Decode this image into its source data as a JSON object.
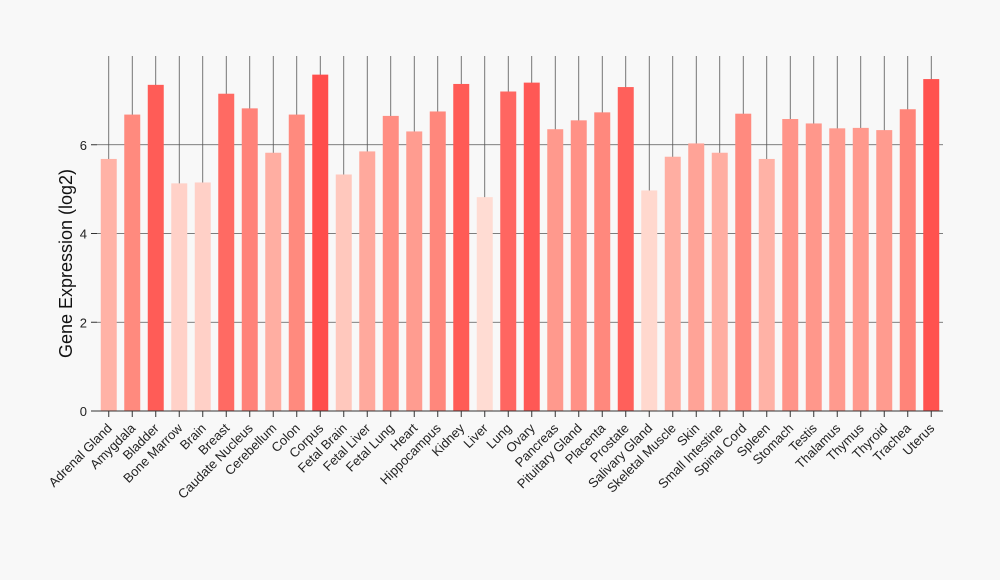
{
  "chart_data": {
    "type": "bar",
    "title": "",
    "xlabel": "",
    "ylabel": "Gene Expression (log2)",
    "ylim": [
      0,
      8
    ],
    "yticks": [
      0,
      2,
      4,
      6
    ],
    "grid": true,
    "categories": [
      "Adrenal Gland",
      "Amygdala",
      "Bladder",
      "Bone Marrow",
      "Brain",
      "Breast",
      "Caudate Nucleus",
      "Cerebellum",
      "Colon",
      "Corpus",
      "Fetal Brain",
      "Fetal Liver",
      "Fetal Lung",
      "Heart",
      "Hippocampus",
      "Kidney",
      "Liver",
      "Lung",
      "Ovary",
      "Pancreas",
      "Pituitary Gland",
      "Placenta",
      "Prostate",
      "Salivary Gland",
      "Skeletal Muscle",
      "Skin",
      "Small Intestine",
      "Spinal Cord",
      "Spleen",
      "Stomach",
      "Testis",
      "Thalamus",
      "Thymus",
      "Thyroid",
      "Trachea",
      "Uterus"
    ],
    "values": [
      5.68,
      6.68,
      7.35,
      5.13,
      5.15,
      7.15,
      6.82,
      5.82,
      6.68,
      7.58,
      5.33,
      5.85,
      6.65,
      6.3,
      6.75,
      7.37,
      4.82,
      7.2,
      7.4,
      6.35,
      6.55,
      6.73,
      7.3,
      4.97,
      5.73,
      6.03,
      5.82,
      6.7,
      5.68,
      6.58,
      6.48,
      6.37,
      6.38,
      6.33,
      6.8,
      7.48
    ],
    "colors": [
      "#ffb2a6",
      "#ff8a7e",
      "#ff5c57",
      "#ffd1c8",
      "#ffd0c7",
      "#ff6a63",
      "#ff8279",
      "#ffaea2",
      "#ff8a7e",
      "#ff4e4c",
      "#ffc8bd",
      "#ffa99d",
      "#ff8d82",
      "#ff9c90",
      "#ff877c",
      "#ff5b56",
      "#ffdcd3",
      "#ff6661",
      "#ff5855",
      "#ff998d",
      "#ff9186",
      "#ff887d",
      "#ff605b",
      "#ffd8ce",
      "#ffaea2",
      "#ffa397",
      "#ffaea2",
      "#ff8a7f",
      "#ffb2a6",
      "#ff9489",
      "#ff978b",
      "#ff9a8e",
      "#ff998d",
      "#ff9b8f",
      "#ff8479",
      "#ff524f"
    ]
  }
}
